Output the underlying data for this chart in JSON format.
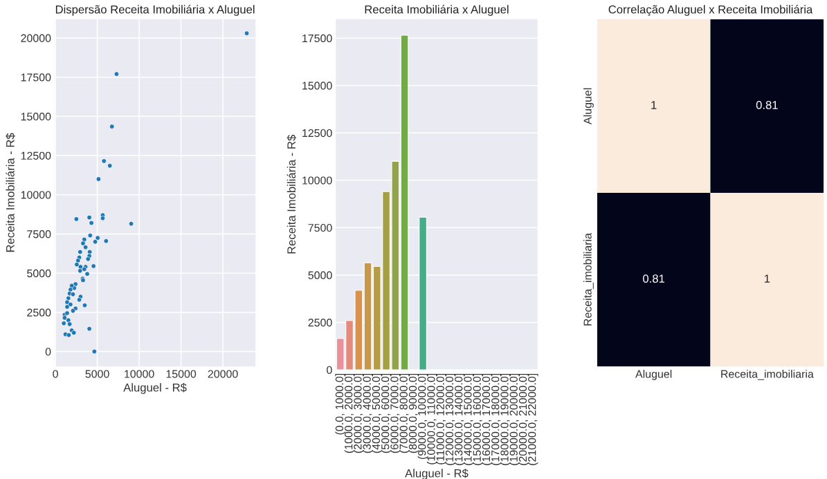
{
  "chart_data": [
    {
      "type": "scatter",
      "title": "Dispersão Receita Imobiliária x Aluguel",
      "xlabel": "Aluguel - R$",
      "ylabel": "Receita Imobiliária - R$",
      "x": [
        22850,
        7300,
        6750,
        5800,
        6500,
        5150,
        2500,
        4050,
        4300,
        5650,
        5650,
        9050,
        4150,
        5050,
        4750,
        6050,
        3450,
        3300,
        3600,
        4100,
        4050,
        3900,
        2950,
        2850,
        2700,
        2550,
        3000,
        3600,
        3450,
        4550,
        2950,
        3800,
        3250,
        3300,
        2400,
        2250,
        1950,
        1800,
        1700,
        2100,
        1550,
        3000,
        2850,
        1400,
        1800,
        2400,
        1400,
        3500,
        2100,
        1100,
        1400,
        1100,
        1550,
        1000,
        1700,
        1950,
        2200,
        4050,
        1200,
        1600,
        4650
      ],
      "values": [
        20300,
        17700,
        14350,
        12150,
        11850,
        11000,
        8450,
        8550,
        8200,
        8700,
        8500,
        8150,
        7400,
        7250,
        7000,
        7050,
        7150,
        6900,
        6650,
        6350,
        6100,
        5900,
        6350,
        6000,
        5800,
        5550,
        5400,
        5400,
        5250,
        5450,
        5150,
        4950,
        4650,
        4550,
        4300,
        4050,
        4200,
        3950,
        3700,
        3650,
        3400,
        3500,
        3300,
        3150,
        3000,
        2750,
        2850,
        2950,
        2600,
        2350,
        2450,
        2150,
        2000,
        1800,
        1750,
        1350,
        1200,
        1450,
        1100,
        1050,
        0
      ],
      "color": "#1f77b4",
      "marker": "circle",
      "xlim": [
        -100,
        23900
      ],
      "xticks": [
        0,
        5000,
        10000,
        15000,
        20000
      ],
      "ylim": [
        -950,
        21200
      ],
      "yticks": [
        0,
        2500,
        5000,
        7500,
        10000,
        12500,
        15000,
        17500,
        20000
      ],
      "grid": true
    },
    {
      "type": "bar",
      "title": "Receita Imobiliária x Aluguel",
      "xlabel": "Aluguel - R$",
      "ylabel": "Receita Imobiliária - R$",
      "categories": [
        "(0.0, 1000.0]",
        "(1000.0, 2000.0]",
        "(2000.0, 3000.0]",
        "(3000.0, 4000.0]",
        "(4000.0, 5000.0]",
        "(5000.0, 6000.0]",
        "(6000.0, 7000.0]",
        "(7000.0, 8000.0]",
        "(8000.0, 9000.0]",
        "(9000.0, 10000.0]",
        "(10000.0, 11000.0]",
        "(11000.0, 12000.0]",
        "(12000.0, 13000.0]",
        "(13000.0, 14000.0]",
        "(14000.0, 15000.0]",
        "(15000.0, 16000.0]",
        "(16000.0, 17000.0]",
        "(17000.0, 18000.0]",
        "(18000.0, 19000.0]",
        "(19000.0, 20000.0]",
        "(20000.0, 21000.0]",
        "(21000.0, 22000.0]"
      ],
      "values": [
        1650,
        2600,
        4200,
        5650,
        5450,
        9400,
        11000,
        17650,
        null,
        8050,
        null,
        null,
        null,
        null,
        null,
        null,
        null,
        null,
        null,
        null,
        null,
        null
      ],
      "colors": [
        "#e8919b",
        "#e48a7d",
        "#d8914e",
        "#c8984a",
        "#b59c47",
        "#a3a046",
        "#91a447",
        "#74a94a",
        "#5aac6a",
        "#44ad87",
        "#45ab9b",
        "#47aaa8",
        "#48a8b4",
        "#4aa6c1",
        "#58a2d2",
        "#7e9ad8",
        "#9b93d8",
        "#b28bd5",
        "#c884d1",
        "#d97fc2",
        "#e27fb0",
        "#e6849f"
      ],
      "ylim": [
        0,
        18500
      ],
      "yticks": [
        0,
        2500,
        5000,
        7500,
        10000,
        12500,
        15000,
        17500
      ],
      "grid": "y"
    },
    {
      "type": "heatmap",
      "title": "Correlação Aluguel x Receita Imobiliária",
      "categories": [
        "Aluguel",
        "Receita_imobiliaria"
      ],
      "y_categories": [
        "Aluguel",
        "Receita_imobiliaria"
      ],
      "cells": [
        [
          1,
          0.81
        ],
        [
          0.81,
          1
        ]
      ],
      "data_labels": true
    }
  ]
}
